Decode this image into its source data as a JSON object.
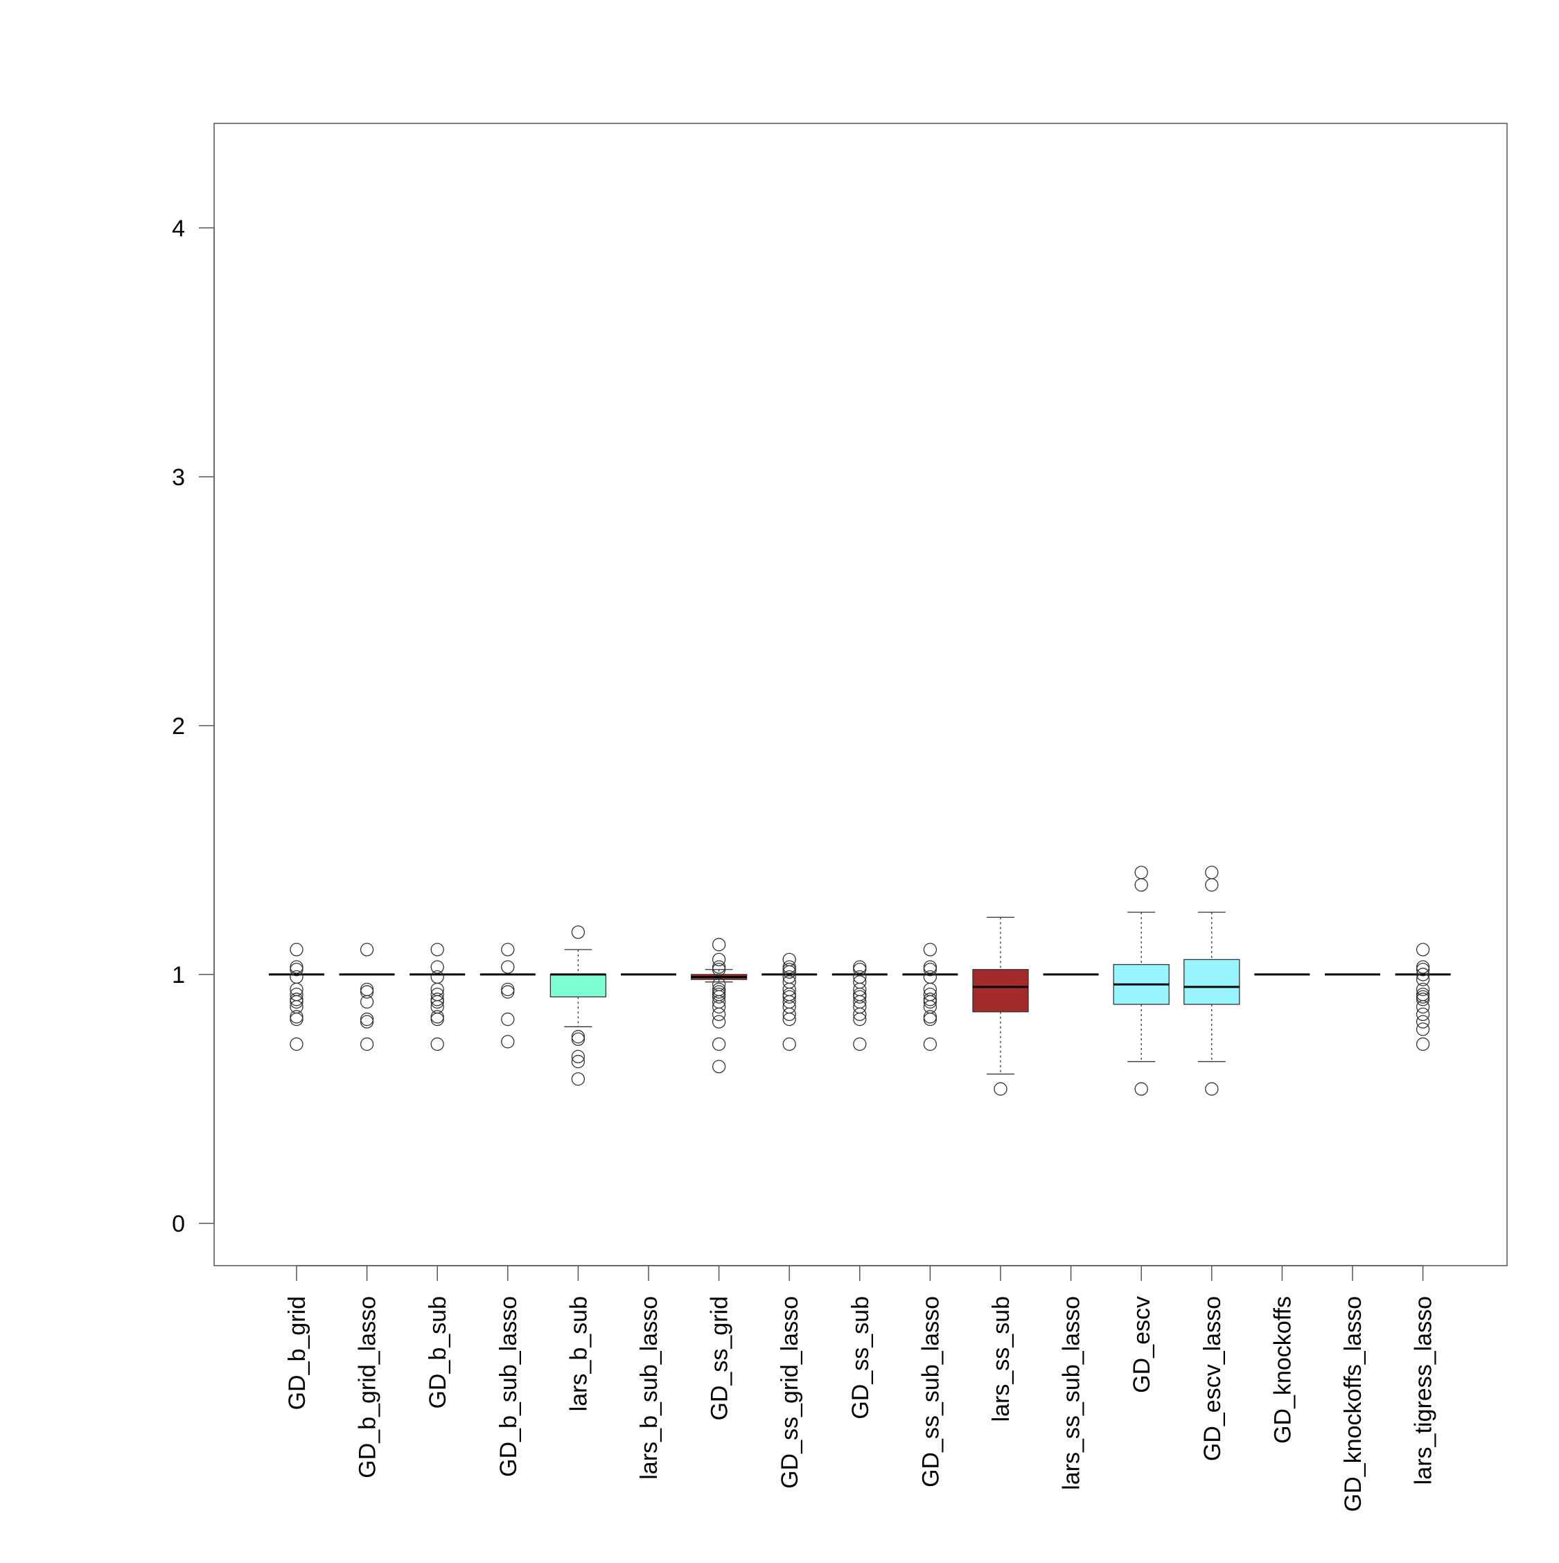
{
  "chart_data": {
    "type": "boxplot",
    "title": "",
    "xlabel": "",
    "ylabel": "",
    "ylim": [
      -0.17,
      4.42
    ],
    "y_ticks": [
      0,
      1,
      2,
      3,
      4
    ],
    "y_tick_labels": [
      "0",
      "1",
      "2",
      "3",
      "4"
    ],
    "grid": false,
    "legend": "none",
    "categories": [
      "GD_b_grid",
      "GD_b_grid_lasso",
      "GD_b_sub",
      "GD_b_sub_lasso",
      "lars_b_sub",
      "lars_b_sub_lasso",
      "GD_ss_grid",
      "GD_ss_grid_lasso",
      "GD_ss_sub",
      "GD_ss_sub_lasso",
      "lars_ss_sub",
      "lars_ss_sub_lasso",
      "GD_escv",
      "GD_escv_lasso",
      "GD_knockoffs",
      "GD_knockoffs_lasso",
      "lars_tigress_lasso"
    ],
    "boxes": [
      {
        "whisker_low": 1.0,
        "q1": 1.0,
        "median": 1.0,
        "q3": 1.0,
        "whisker_high": 1.0,
        "fill": "",
        "outliers": [
          1.1,
          1.03,
          1.02,
          0.99,
          0.94,
          0.92,
          0.9,
          0.89,
          0.87,
          0.83,
          0.82,
          0.72
        ]
      },
      {
        "whisker_low": 1.0,
        "q1": 1.0,
        "median": 1.0,
        "q3": 1.0,
        "whisker_high": 1.0,
        "fill": "",
        "outliers": [
          1.1,
          0.94,
          0.93,
          0.89,
          0.82,
          0.81,
          0.72
        ]
      },
      {
        "whisker_low": 1.0,
        "q1": 1.0,
        "median": 1.0,
        "q3": 1.0,
        "whisker_high": 1.0,
        "fill": "",
        "outliers": [
          1.1,
          1.03,
          0.99,
          0.94,
          0.92,
          0.9,
          0.89,
          0.87,
          0.83,
          0.82,
          0.72
        ]
      },
      {
        "whisker_low": 1.0,
        "q1": 1.0,
        "median": 1.0,
        "q3": 1.0,
        "whisker_high": 1.0,
        "fill": "",
        "outliers": [
          1.1,
          1.03,
          0.94,
          0.93,
          0.82,
          0.73
        ]
      },
      {
        "whisker_low": 0.79,
        "q1": 0.91,
        "median": 1.0,
        "q3": 1.0,
        "whisker_high": 1.1,
        "fill": "#7fffd4",
        "outliers": [
          1.17,
          0.75,
          0.74,
          0.67,
          0.65,
          0.58
        ]
      },
      {
        "whisker_low": 1.0,
        "q1": 1.0,
        "median": 1.0,
        "q3": 1.0,
        "whisker_high": 1.0,
        "fill": "",
        "outliers": []
      },
      {
        "whisker_low": 0.97,
        "q1": 0.98,
        "median": 0.99,
        "q3": 1.0,
        "whisker_high": 1.02,
        "fill": "#a52a2a",
        "outliers": [
          1.12,
          1.06,
          1.03,
          1.02,
          0.96,
          0.94,
          0.93,
          0.92,
          0.91,
          0.89,
          0.87,
          0.84,
          0.81,
          0.72,
          0.63
        ]
      },
      {
        "whisker_low": 1.0,
        "q1": 1.0,
        "median": 1.0,
        "q3": 1.0,
        "whisker_high": 1.0,
        "fill": "",
        "outliers": [
          1.06,
          1.03,
          1.02,
          1.01,
          0.99,
          0.97,
          0.94,
          0.92,
          0.91,
          0.89,
          0.87,
          0.84,
          0.82,
          0.72
        ]
      },
      {
        "whisker_low": 1.0,
        "q1": 1.0,
        "median": 1.0,
        "q3": 1.0,
        "whisker_high": 1.0,
        "fill": "",
        "outliers": [
          1.03,
          1.02,
          0.99,
          0.97,
          0.94,
          0.92,
          0.91,
          0.89,
          0.87,
          0.84,
          0.82,
          0.72
        ]
      },
      {
        "whisker_low": 1.0,
        "q1": 1.0,
        "median": 1.0,
        "q3": 1.0,
        "whisker_high": 1.0,
        "fill": "",
        "outliers": [
          1.1,
          1.03,
          1.02,
          0.99,
          0.94,
          0.92,
          0.9,
          0.89,
          0.87,
          0.83,
          0.82,
          0.72
        ]
      },
      {
        "whisker_low": 0.6,
        "q1": 0.85,
        "median": 0.95,
        "q3": 1.02,
        "whisker_high": 1.23,
        "fill": "#a52a2a",
        "outliers": [
          0.54
        ]
      },
      {
        "whisker_low": 1.0,
        "q1": 1.0,
        "median": 1.0,
        "q3": 1.0,
        "whisker_high": 1.0,
        "fill": "",
        "outliers": []
      },
      {
        "whisker_low": 0.65,
        "q1": 0.88,
        "median": 0.96,
        "q3": 1.04,
        "whisker_high": 1.25,
        "fill": "#98f5ff",
        "outliers": [
          1.41,
          1.36,
          0.54
        ]
      },
      {
        "whisker_low": 0.65,
        "q1": 0.88,
        "median": 0.95,
        "q3": 1.06,
        "whisker_high": 1.25,
        "fill": "#98f5ff",
        "outliers": [
          1.41,
          1.36,
          0.54
        ]
      },
      {
        "whisker_low": 1.0,
        "q1": 1.0,
        "median": 1.0,
        "q3": 1.0,
        "whisker_high": 1.0,
        "fill": "",
        "outliers": []
      },
      {
        "whisker_low": 1.0,
        "q1": 1.0,
        "median": 1.0,
        "q3": 1.0,
        "whisker_high": 1.0,
        "fill": "",
        "outliers": []
      },
      {
        "whisker_low": 1.0,
        "q1": 1.0,
        "median": 1.0,
        "q3": 1.0,
        "whisker_high": 1.0,
        "fill": "",
        "outliers": [
          1.1,
          1.03,
          1.02,
          1.0,
          0.98,
          0.94,
          0.92,
          0.91,
          0.9,
          0.87,
          0.84,
          0.81,
          0.78,
          0.72
        ]
      }
    ]
  }
}
